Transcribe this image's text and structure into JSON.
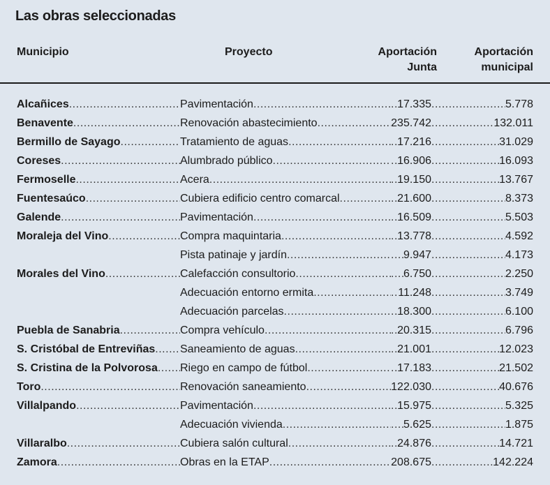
{
  "title": "Las obras seleccionadas",
  "headers": {
    "municipio": "Municipio",
    "proyecto": "Proyecto",
    "junta_line1": "Aportación",
    "junta_line2": "Junta",
    "municipal_line1": "Aportación",
    "municipal_line2": "municipal"
  },
  "rows": [
    {
      "municipio": "Alcañices",
      "proyecto": "Pavimentación",
      "junta": "17.335",
      "municipal": "5.778"
    },
    {
      "municipio": "Benavente",
      "proyecto": "Renovación abastecimiento",
      "junta": "235.742",
      "municipal": "132.011"
    },
    {
      "municipio": "Bermillo de Sayago",
      "proyecto": "Tratamiento de aguas",
      "junta": "17.216",
      "municipal": "31.029"
    },
    {
      "municipio": "Coreses",
      "proyecto": "Alumbrado público",
      "junta": "16.906",
      "municipal": "16.093"
    },
    {
      "municipio": "Fermoselle",
      "proyecto": "Acera",
      "junta": "19.150",
      "municipal": "13.767"
    },
    {
      "municipio": "Fuentesaúco",
      "proyecto": "Cubiera edificio centro comarcal",
      "junta": "21.600",
      "municipal": "8.373"
    },
    {
      "municipio": "Galende",
      "proyecto": "Pavimentación",
      "junta": "16.509",
      "municipal": "5.503"
    },
    {
      "municipio": "Moraleja del Vino",
      "proyecto": "Compra maquintaria",
      "junta": "13.778",
      "municipal": "4.592"
    },
    {
      "municipio": "",
      "proyecto": "Pista patinaje y jardín",
      "junta": "9.947",
      "municipal": "4.173"
    },
    {
      "municipio": "Morales del Vino",
      "proyecto": "Calefacción consultorio",
      "junta": "6.750",
      "municipal": "2.250"
    },
    {
      "municipio": "",
      "proyecto": "Adecuación entorno ermita",
      "junta": "11.248",
      "municipal": "3.749"
    },
    {
      "municipio": "",
      "proyecto": "Adecuación parcelas",
      "junta": "18.300",
      "municipal": "6.100"
    },
    {
      "municipio": "Puebla de Sanabria",
      "proyecto": "Compra vehículo",
      "junta": "20.315",
      "municipal": "6.796"
    },
    {
      "municipio": "S. Cristóbal de Entreviñas",
      "proyecto": "Saneamiento de aguas",
      "junta": "21.001",
      "municipal": "12.023"
    },
    {
      "municipio": "S. Cristina de la Polvorosa",
      "proyecto": "Riego en campo de fútbol",
      "junta": "17.183",
      "municipal": "21.502"
    },
    {
      "municipio": "Toro",
      "proyecto": "Renovación saneamiento",
      "junta": "122.030",
      "municipal": "40.676"
    },
    {
      "municipio": "Villalpando",
      "proyecto": "Pavimentación",
      "junta": "15.975",
      "municipal": "5.325"
    },
    {
      "municipio": "",
      "proyecto": "Adecuación vivienda",
      "junta": "5.625",
      "municipal": "1.875"
    },
    {
      "municipio": "Villaralbo",
      "proyecto": "Cubiera salón cultural",
      "junta": "24.876",
      "municipal": "14.721"
    },
    {
      "municipio": "Zamora",
      "proyecto": "Obras en la ETAP",
      "junta": "208.675",
      "municipal": "142.224"
    }
  ]
}
